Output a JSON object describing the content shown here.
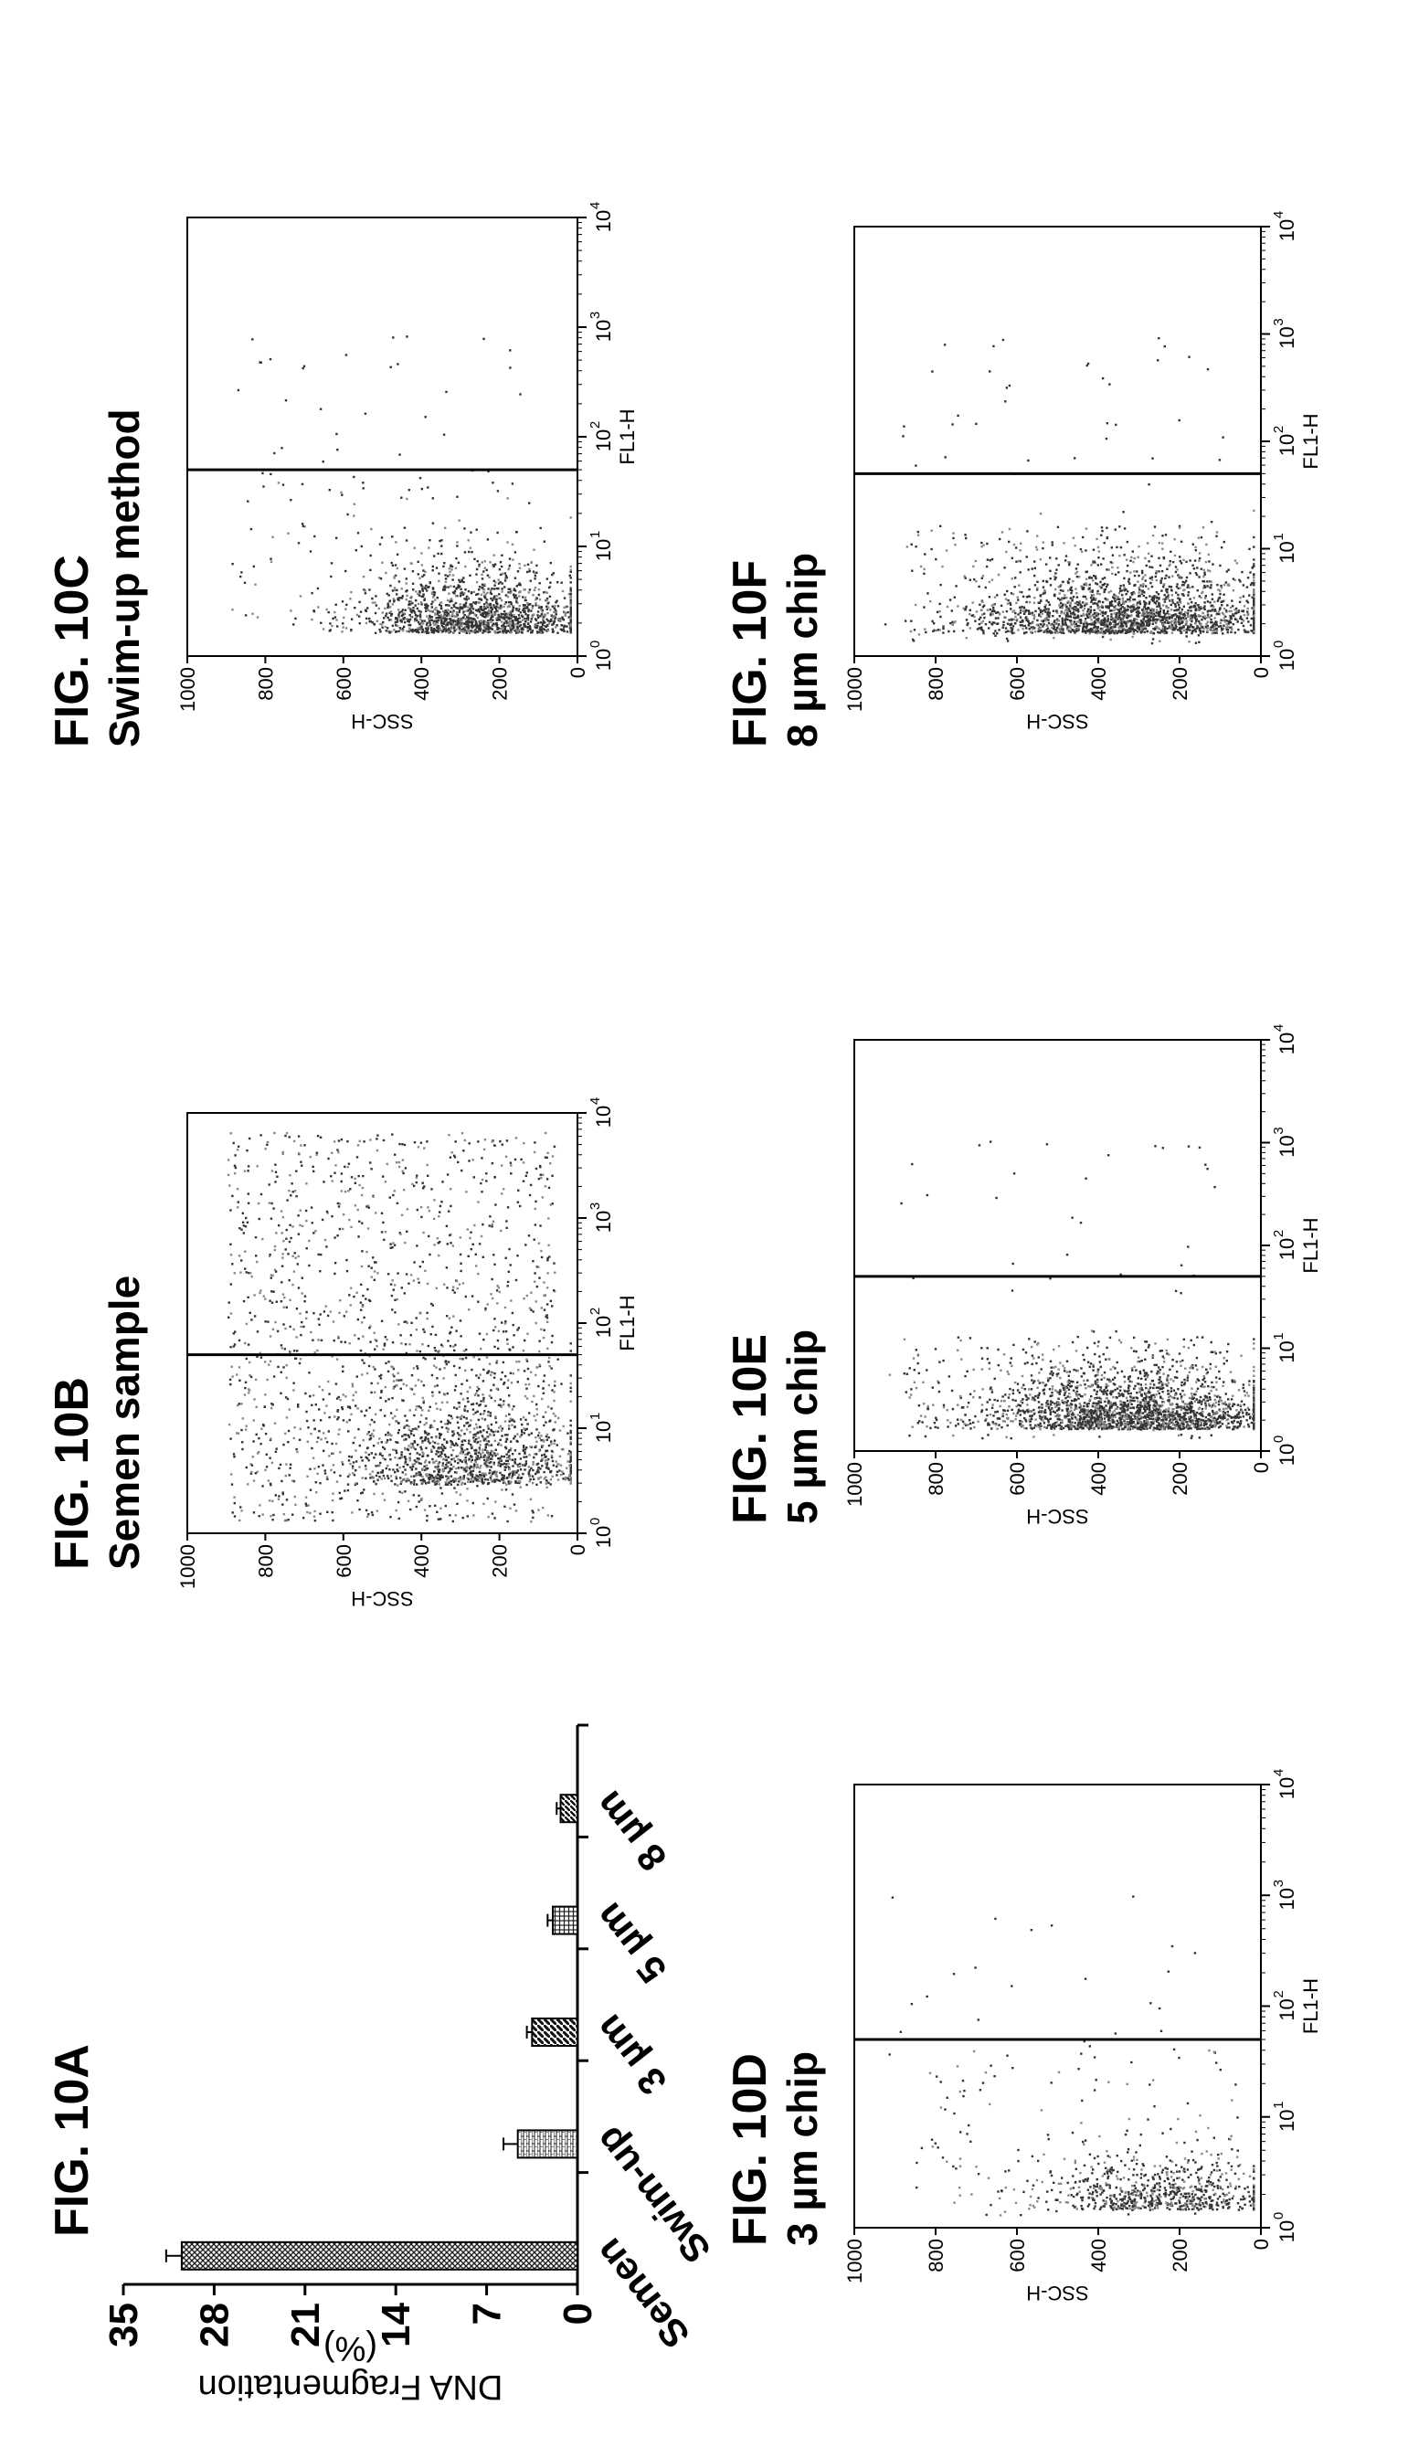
{
  "figures": {
    "a": {
      "label": "FIG. 10A",
      "subtitle": ""
    },
    "b": {
      "label": "FIG. 10B",
      "subtitle": "Semen sample"
    },
    "c": {
      "label": "FIG. 10C",
      "subtitle": "Swim-up method"
    },
    "d": {
      "label": "FIG. 10D",
      "subtitle": "3 µm chip"
    },
    "e": {
      "label": "FIG. 10E",
      "subtitle": "5 µm chip"
    },
    "f": {
      "label": "FIG. 10F",
      "subtitle": "8 µm chip"
    }
  },
  "chart_data": [
    {
      "id": "a",
      "type": "bar",
      "title": "FIG. 10A",
      "categories": [
        "Semen",
        "Swim-up",
        "3 µm",
        "5 µm",
        "8 µm"
      ],
      "values": [
        30.5,
        4.6,
        3.5,
        1.9,
        1.3
      ],
      "errors": [
        1.2,
        1.1,
        0.4,
        0.4,
        0.3
      ],
      "ylabel_line1": "DNA Fragmentation",
      "ylabel_line2": "(%)",
      "xlabel": "",
      "ylim": [
        0,
        35
      ],
      "yticks": [
        0,
        7,
        14,
        21,
        28,
        35
      ]
    },
    {
      "id": "b",
      "type": "scatter",
      "title": "FIG. 10B",
      "subtitle": "Semen sample",
      "xlabel": "FL1-H",
      "ylabel": "SSC-H",
      "x_scale": "log",
      "xlim": [
        1,
        10000
      ],
      "ylim": [
        0,
        1000
      ],
      "xtick_exponents": [
        "0",
        "1",
        "2",
        "3",
        "4"
      ],
      "yticks": [
        0,
        200,
        400,
        600,
        800,
        1000
      ],
      "gate_x": 50,
      "grid": false
    },
    {
      "id": "c",
      "type": "scatter",
      "title": "FIG. 10C",
      "subtitle": "Swim-up method",
      "xlabel": "FL1-H",
      "ylabel": "SSC-H",
      "x_scale": "log",
      "xlim": [
        1,
        10000
      ],
      "ylim": [
        0,
        1000
      ],
      "xtick_exponents": [
        "0",
        "1",
        "2",
        "3",
        "4"
      ],
      "yticks": [
        0,
        200,
        400,
        600,
        800,
        1000
      ],
      "gate_x": 50,
      "grid": false
    },
    {
      "id": "d",
      "type": "scatter",
      "title": "FIG. 10D",
      "subtitle": "3 µm chip",
      "xlabel": "FL1-H",
      "ylabel": "SSC-H",
      "x_scale": "log",
      "xlim": [
        1,
        10000
      ],
      "ylim": [
        0,
        1000
      ],
      "xtick_exponents": [
        "0",
        "1",
        "2",
        "3",
        "4"
      ],
      "yticks": [
        0,
        200,
        400,
        600,
        800,
        1000
      ],
      "gate_x": 50,
      "grid": false
    },
    {
      "id": "e",
      "type": "scatter",
      "title": "FIG. 10E",
      "subtitle": "5 µm chip",
      "xlabel": "FL1-H",
      "ylabel": "SSC-H",
      "x_scale": "log",
      "xlim": [
        1,
        10000
      ],
      "ylim": [
        0,
        1000
      ],
      "xtick_exponents": [
        "0",
        "1",
        "2",
        "3",
        "4"
      ],
      "yticks": [
        0,
        200,
        400,
        600,
        800,
        1000
      ],
      "gate_x": 50,
      "grid": false
    },
    {
      "id": "f",
      "type": "scatter",
      "title": "FIG. 10F",
      "subtitle": "8 µm chip",
      "xlabel": "FL1-H",
      "ylabel": "SSC-H",
      "x_scale": "log",
      "xlim": [
        1,
        10000
      ],
      "ylim": [
        0,
        1000
      ],
      "xtick_exponents": [
        "0",
        "1",
        "2",
        "3",
        "4"
      ],
      "yticks": [
        0,
        200,
        400,
        600,
        800,
        1000
      ],
      "gate_x": 50,
      "grid": false
    }
  ]
}
